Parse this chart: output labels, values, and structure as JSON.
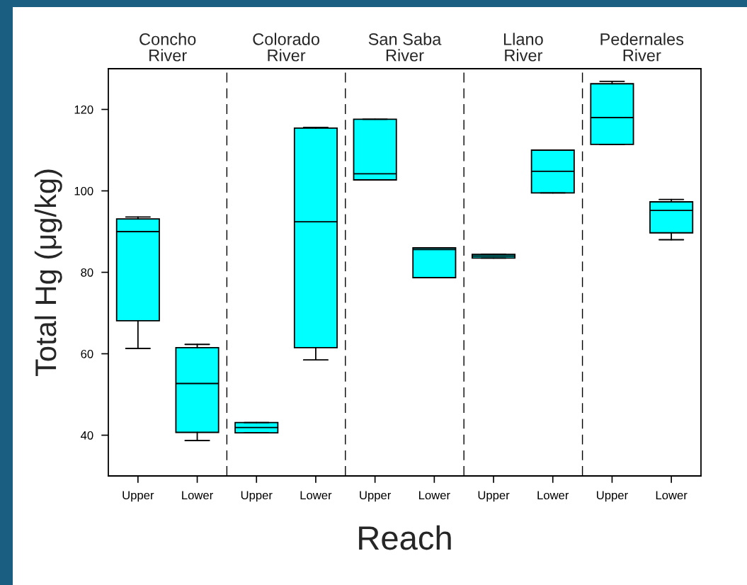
{
  "chart_data": {
    "type": "box",
    "xlabel": "Reach",
    "ylabel": "Total Hg (μg/kg)",
    "categories": [
      "Upper",
      "Lower",
      "Upper",
      "Lower",
      "Upper",
      "Lower",
      "Upper",
      "Lower",
      "Upper",
      "Lower"
    ],
    "annotations": [
      "Concho\nRiver",
      "Colorado\nRiver",
      "San Saba\nRiver",
      "Llano\nRiver",
      "Pedernales\nRiver"
    ],
    "color": "#00ffff",
    "boxes": [
      {
        "low": 61.3,
        "q1": 68.1,
        "median": 90.0,
        "q3": 93.1,
        "high": 93.6
      },
      {
        "low": 38.7,
        "q1": 40.7,
        "median": 52.7,
        "q3": 61.5,
        "high": 62.3
      },
      {
        "low": 40.6,
        "q1": 40.6,
        "median": 41.9,
        "q3": 43.1,
        "high": 43.1
      },
      {
        "low": 58.5,
        "q1": 61.5,
        "median": 92.4,
        "q3": 115.4,
        "high": 115.6
      },
      {
        "low": 102.7,
        "q1": 102.7,
        "median": 104.2,
        "q3": 117.6,
        "high": 117.6
      },
      {
        "low": 78.7,
        "q1": 78.7,
        "median": 85.6,
        "q3": 86.0,
        "high": 86.0
      },
      {
        "low": 83.5,
        "q1": 83.5,
        "median": 84.0,
        "q3": 84.4,
        "high": 84.4
      },
      {
        "low": 99.5,
        "q1": 99.5,
        "median": 104.8,
        "q3": 110.0,
        "high": 110.0
      },
      {
        "low": 111.4,
        "q1": 111.4,
        "median": 118.0,
        "q3": 126.3,
        "high": 126.9
      },
      {
        "low": 88.0,
        "q1": 89.7,
        "median": 95.2,
        "q3": 97.3,
        "high": 97.9
      }
    ],
    "ylim": [
      30,
      130
    ],
    "yticks": [
      40,
      60,
      80,
      100,
      120
    ]
  }
}
